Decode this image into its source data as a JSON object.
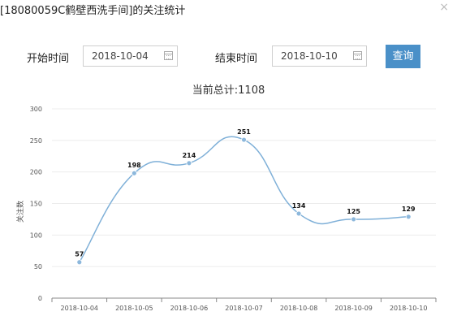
{
  "dialog": {
    "title": "[18080059C鹤壁西洗手间]的关注统计",
    "close_glyph": "×"
  },
  "filters": {
    "start_label": "开始时间",
    "start_value": "2018-10-04",
    "end_label": "结束时间",
    "end_value": "2018-10-10",
    "query_label": "查询",
    "calendar_icon": "calendar-icon"
  },
  "summary": {
    "total_text": "当前总计:1108"
  },
  "chart_data": {
    "type": "line",
    "categories": [
      "2018-10-04",
      "2018-10-05",
      "2018-10-06",
      "2018-10-07",
      "2018-10-08",
      "2018-10-09",
      "2018-10-10"
    ],
    "values": [
      57,
      198,
      214,
      251,
      134,
      125,
      129
    ],
    "ylabel": "关注数",
    "ylim": [
      0,
      300
    ],
    "yticks": [
      0,
      50,
      100,
      150,
      200,
      250,
      300
    ],
    "smooth": true,
    "grid": true,
    "line_color": "#7fb0d8",
    "point_color": "#8db8dc"
  }
}
